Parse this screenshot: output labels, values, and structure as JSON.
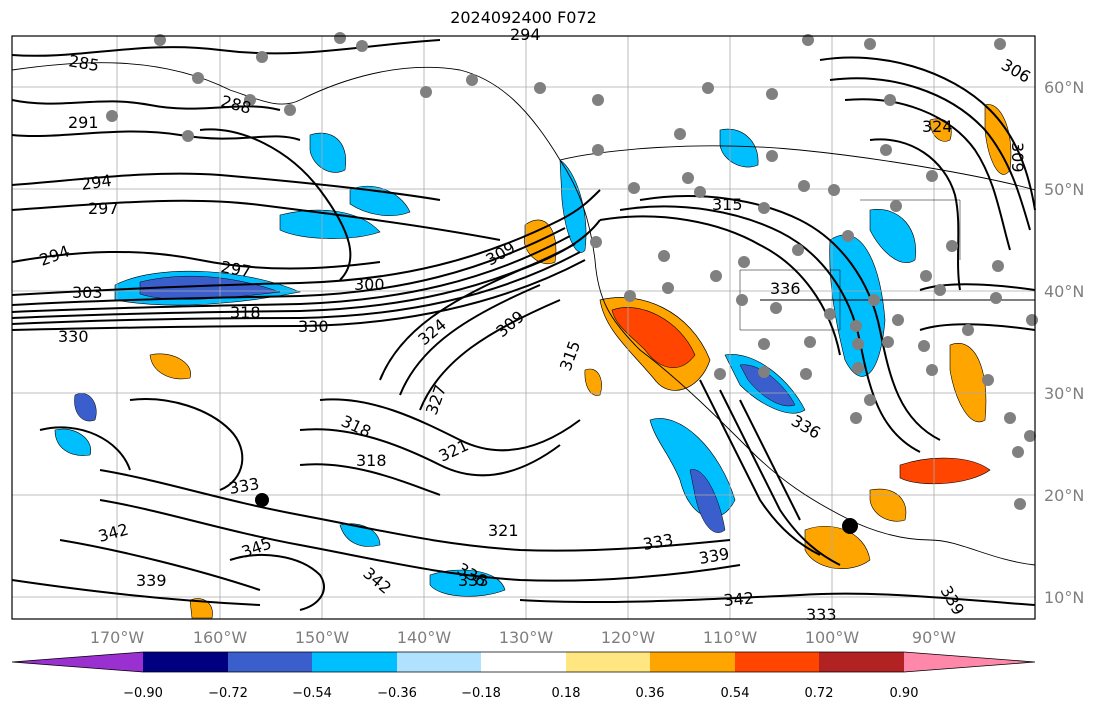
{
  "title": "2024092400 F072",
  "lon_labels": [
    "170°W",
    "160°W",
    "150°W",
    "140°W",
    "130°W",
    "120°W",
    "110°W",
    "100°W",
    "90°W"
  ],
  "lat_labels": [
    "60°N",
    "50°N",
    "40°N",
    "30°N",
    "20°N",
    "10°N"
  ],
  "colorbar": {
    "ticks": [
      "−0.90",
      "−0.72",
      "−0.54",
      "−0.36",
      "−0.18",
      "0.18",
      "0.36",
      "0.54",
      "0.72",
      "0.90"
    ],
    "colors": [
      "#9b30d0",
      "#000080",
      "#3a5fcd",
      "#00bfff",
      "#b0e2ff",
      "#ffffff",
      "#ffe680",
      "#ffa500",
      "#ff4500",
      "#b22222",
      "#ff88aa"
    ]
  },
  "contour_labels": [
    "285",
    "288",
    "291",
    "294",
    "297",
    "294",
    "294",
    "297",
    "303",
    "300",
    "318",
    "330",
    "330",
    "309",
    "324",
    "309",
    "315",
    "315",
    "324",
    "306",
    "309",
    "336",
    "336",
    "327",
    "318",
    "318",
    "321",
    "333",
    "342",
    "345",
    "342",
    "336",
    "333",
    "321",
    "333",
    "339",
    "339",
    "342",
    "333",
    "339"
  ]
}
